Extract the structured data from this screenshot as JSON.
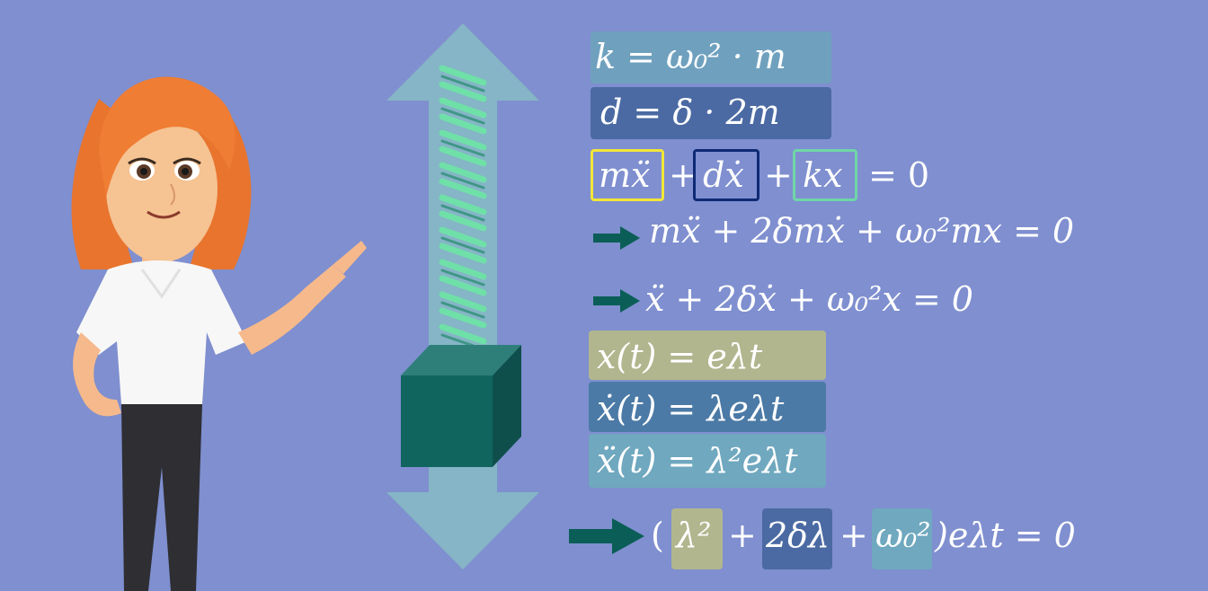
{
  "scene": {
    "background_color": "#7f8fcf",
    "character": "teacher-woman-pointing",
    "apparatus": "spring-mass-oscillator"
  },
  "equations": {
    "k_def": {
      "lhs": "k",
      "rhs": "= ω₀² · m",
      "box_color": "#6fa1bf"
    },
    "d_def": {
      "lhs": "d",
      "rhs": "= δ · 2m",
      "box_color": "#4b6aa3"
    },
    "ode": {
      "term_m": "mẍ",
      "term_d": "dẋ",
      "term_k": "kx",
      "plus": "+",
      "rhs": "=  0",
      "colors": {
        "m": "#f2e638",
        "d": "#0f2a74",
        "k": "#6fd6a8"
      }
    },
    "ode_expanded": "mẍ + 2δmẋ + ω₀²mx = 0",
    "ode_normalized": "ẍ + 2δẋ + ω₀²x = 0",
    "ansatz_x": {
      "text": "x(t) = eλt",
      "box_color": "#b2b68e"
    },
    "ansatz_dx": {
      "text": "ẋ(t) = λeλt",
      "box_color": "#4b7aa6"
    },
    "ansatz_ddx": {
      "text": "ẍ(t) = λ²eλt",
      "box_color": "#6fa8bf"
    },
    "characteristic": {
      "open": "(",
      "t1": "λ²",
      "plus": "+",
      "t2": "2δλ",
      "t3": "ω₀²",
      "tail": ")eλt = 0",
      "colors": {
        "t1": "#b2b68e",
        "t2": "#4b6aa3",
        "t3": "#6fa8bf"
      }
    }
  }
}
